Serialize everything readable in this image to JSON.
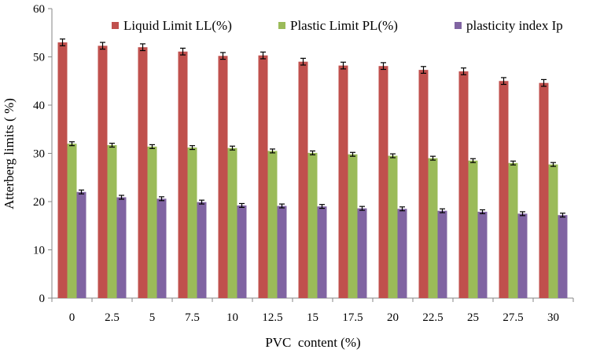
{
  "chart_data": {
    "type": "bar",
    "title": "",
    "xlabel": "PVC  content (%)",
    "ylabel": "Atterberg limits ( %)",
    "ylim": [
      0,
      60
    ],
    "yticks": [
      0,
      10,
      20,
      30,
      40,
      50,
      60
    ],
    "categories": [
      "0",
      "2.5",
      "5",
      "7.5",
      "10",
      "12.5",
      "15",
      "17.5",
      "20",
      "22.5",
      "25",
      "27.5",
      "30"
    ],
    "legend_position": "top",
    "error_bars": true,
    "series": [
      {
        "name": "Liquid Limit LL(%)",
        "color": "#c0504d",
        "values": [
          53,
          52.3,
          52,
          51.1,
          50.2,
          50.3,
          49,
          48.2,
          48.1,
          47.3,
          47,
          45,
          44.6
        ],
        "errors": [
          0.7,
          0.7,
          0.7,
          0.7,
          0.7,
          0.7,
          0.7,
          0.7,
          0.7,
          0.7,
          0.7,
          0.7,
          0.7
        ]
      },
      {
        "name": "Plastic Limit PL(%)",
        "color": "#9bbb59",
        "values": [
          32,
          31.7,
          31.4,
          31.2,
          31.1,
          30.5,
          30.1,
          29.8,
          29.5,
          29,
          28.5,
          28,
          27.7
        ],
        "errors": [
          0.4,
          0.4,
          0.4,
          0.4,
          0.4,
          0.4,
          0.4,
          0.4,
          0.4,
          0.4,
          0.4,
          0.4,
          0.4
        ]
      },
      {
        "name": "plasticity index Ip",
        "color": "#8064a2",
        "values": [
          22,
          20.9,
          20.6,
          19.9,
          19.2,
          19.1,
          19,
          18.6,
          18.5,
          18.1,
          17.9,
          17.5,
          17.2
        ],
        "errors": [
          0.4,
          0.4,
          0.4,
          0.4,
          0.4,
          0.4,
          0.4,
          0.4,
          0.4,
          0.4,
          0.4,
          0.4,
          0.4
        ]
      }
    ]
  }
}
